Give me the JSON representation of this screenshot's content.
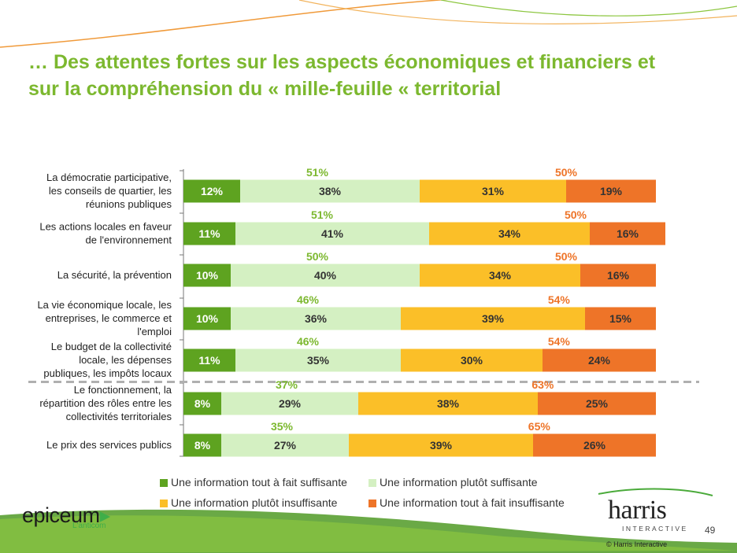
{
  "slide": {
    "title_line1": "… Des attentes fortes sur les aspects économiques et financiers et",
    "title_line2": "sur la compréhension du « mille-feuille «  territorial",
    "page_number": "49",
    "copyright": "© Harris Interactive",
    "logo_left": "epiceum",
    "logo_left_sub": "L'anticom",
    "logo_right": "harris",
    "logo_right_sub": "INTERACTIVE"
  },
  "chart_data": {
    "type": "bar",
    "orientation": "horizontal",
    "stacked": true,
    "unit": "%",
    "categories": [
      [
        "La démocratie participative,",
        "les conseils de quartier, les",
        "réunions publiques"
      ],
      [
        "Les actions locales en faveur",
        "de l'environnement"
      ],
      [
        "La sécurité, la prévention"
      ],
      [
        "La vie économique locale, les",
        "entreprises, le commerce et",
        "l'emploi"
      ],
      [
        "Le budget de la collectivité",
        "locale, les dépenses",
        "publiques, les impôts locaux"
      ],
      [
        "Le fonctionnement, la",
        "répartition des rôles entre les",
        "collectivités territoriales"
      ],
      [
        "Le prix des services publics"
      ]
    ],
    "series": [
      {
        "name": "Une information tout à fait suffisante",
        "color": "#5ea320",
        "values": [
          12,
          11,
          10,
          10,
          11,
          8,
          8
        ]
      },
      {
        "name": "Une information plutôt suffisante",
        "color": "#d4f0c2",
        "values": [
          38,
          41,
          40,
          36,
          35,
          29,
          27
        ]
      },
      {
        "name": "Une information plutôt insuffisante",
        "color": "#fbbf28",
        "values": [
          31,
          34,
          34,
          39,
          30,
          38,
          39
        ]
      },
      {
        "name": "Une information tout à fait insuffisante",
        "color": "#ee7428",
        "values": [
          19,
          16,
          16,
          15,
          24,
          25,
          26
        ]
      }
    ],
    "sufficient_totals": [
      "51%",
      "51%",
      "50%",
      "46%",
      "46%",
      "37%",
      "35%"
    ],
    "insufficient_totals": [
      "50%",
      "50%",
      "50%",
      "54%",
      "54%",
      "63%",
      "65%"
    ],
    "xlim": [
      0,
      100
    ],
    "label_format": "{v}%",
    "legend_position": "bottom",
    "separator_after_category": 4
  },
  "colors": {
    "title": "#7cb82f",
    "sufficient_total": "#7cb82f",
    "insufficient_total": "#ee7428",
    "separator": "#b0b0b0"
  }
}
